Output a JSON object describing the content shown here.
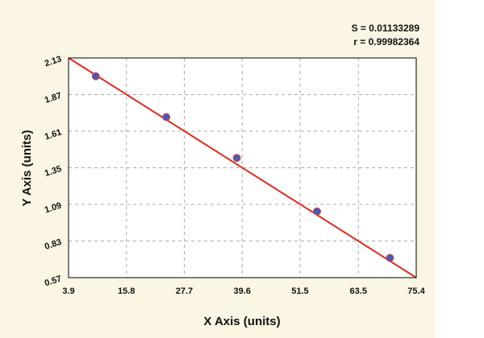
{
  "chart_data": {
    "type": "scatter",
    "title": "",
    "xlabel": "X Axis (units)",
    "ylabel": "Y Axis (units)",
    "xlim": [
      3.9,
      75.4
    ],
    "ylim": [
      0.57,
      2.13
    ],
    "x_ticks": [
      "3.9",
      "15.8",
      "27.7",
      "39.6",
      "51.5",
      "63.5",
      "75.4"
    ],
    "y_ticks": [
      "0.57",
      "0.83",
      "1.09",
      "1.35",
      "1.61",
      "1.87",
      "2.13"
    ],
    "grid": true,
    "background_color": "#fbf6e3",
    "plot_color": "#ffffff",
    "point_color": "#4a5ab8",
    "line_color": "#e02a1f",
    "annotations": {
      "s_value": "S = 0.01133289",
      "r_value": "r = 0.99982364"
    },
    "points": [
      {
        "x": 9.5,
        "y": 2.0
      },
      {
        "x": 24.0,
        "y": 1.71
      },
      {
        "x": 38.5,
        "y": 1.42
      },
      {
        "x": 55.0,
        "y": 1.04
      },
      {
        "x": 70.0,
        "y": 0.71
      }
    ],
    "fit_line": {
      "start": {
        "x": 3.9,
        "y": 2.13
      },
      "end": {
        "x": 75.4,
        "y": 0.57
      }
    }
  }
}
